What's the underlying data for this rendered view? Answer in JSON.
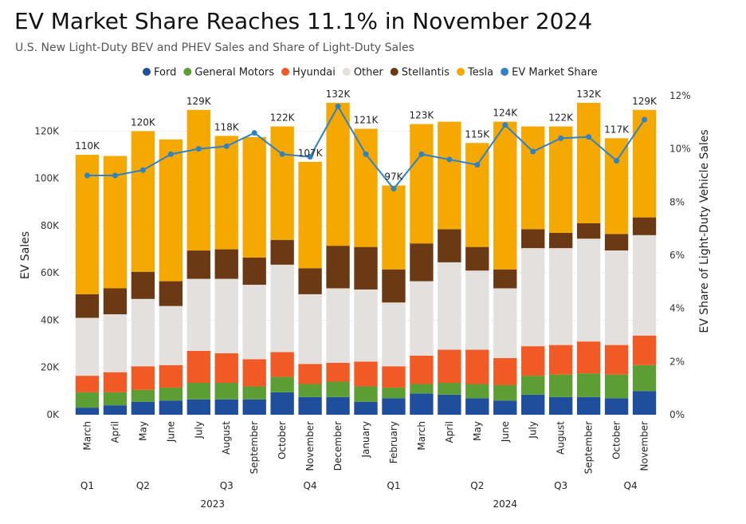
{
  "title": "EV Market Share Reaches 11.1% in November 2024",
  "subtitle": "U.S. New Light-Duty BEV and PHEV Sales and Share of Light-Duty Sales",
  "colors": {
    "Ford": "#1f4e9c",
    "General Motors": "#5c9e34",
    "Hyundai": "#f15a24",
    "Other": "#e3e0dd",
    "Stellantis": "#6b3a14",
    "Tesla": "#f5a800",
    "EV Market Share": "#2e82c6"
  },
  "chart_data": {
    "type": "bar",
    "stacked": true,
    "legend_position": "top",
    "ylabel": "EV Sales",
    "y2label": "EV Share of Light-Duty Vehicle Sales",
    "ylim": [
      0,
      135000
    ],
    "y2lim": [
      0,
      12
    ],
    "yticks": [
      "0K",
      "20K",
      "40K",
      "60K",
      "80K",
      "100K",
      "120K"
    ],
    "y2ticks": [
      "0%",
      "2%",
      "4%",
      "6%",
      "8%",
      "10%",
      "12%"
    ],
    "categories": [
      "March",
      "April",
      "May",
      "June",
      "July",
      "August",
      "September",
      "October",
      "November",
      "December",
      "January",
      "February",
      "March",
      "April",
      "May",
      "June",
      "July",
      "August",
      "September",
      "October",
      "November"
    ],
    "quarters": [
      {
        "label": "Q1",
        "at": 0
      },
      {
        "label": "Q2",
        "at": 2
      },
      {
        "label": "Q3",
        "at": 5
      },
      {
        "label": "Q4",
        "at": 8
      },
      {
        "label": "Q1",
        "at": 11
      },
      {
        "label": "Q2",
        "at": 14
      },
      {
        "label": "Q3",
        "at": 17
      },
      {
        "label": "Q4",
        "at": 19.5
      }
    ],
    "years": [
      {
        "label": "2023",
        "at": 4.5
      },
      {
        "label": "2024",
        "at": 15
      }
    ],
    "totals": [
      "110K",
      "",
      "120K",
      "",
      "129K",
      "118K",
      "",
      "122K",
      "107K",
      "132K",
      "121K",
      "97K",
      "123K",
      "",
      "115K",
      "124K",
      "",
      "122K",
      "132K",
      "117K",
      "129K"
    ],
    "series": [
      {
        "name": "Ford",
        "values": [
          3000,
          4000,
          5500,
          6000,
          6500,
          6500,
          6500,
          9500,
          7500,
          7500,
          5500,
          7000,
          9000,
          8500,
          7000,
          6000,
          8500,
          7500,
          7500,
          7000,
          10000
        ]
      },
      {
        "name": "General Motors",
        "values": [
          6500,
          5500,
          5000,
          5500,
          7000,
          7000,
          5500,
          6500,
          5500,
          6500,
          6500,
          4500,
          4000,
          5000,
          6000,
          6500,
          8000,
          9500,
          10000,
          10000,
          11000
        ]
      },
      {
        "name": "Hyundai",
        "values": [
          7000,
          8500,
          10000,
          9500,
          13500,
          12500,
          11500,
          10500,
          8500,
          8000,
          10500,
          9000,
          12000,
          14000,
          14500,
          11500,
          12500,
          12500,
          13500,
          12500,
          12500
        ]
      },
      {
        "name": "Other",
        "values": [
          24500,
          24500,
          28500,
          25000,
          30500,
          31500,
          31500,
          37000,
          29500,
          31500,
          30500,
          27000,
          31500,
          37000,
          33500,
          29500,
          41500,
          41000,
          43500,
          40000,
          42500
        ]
      },
      {
        "name": "Stellantis",
        "values": [
          10000,
          11000,
          11500,
          10500,
          12000,
          12500,
          11500,
          10500,
          11000,
          18000,
          18000,
          14000,
          16000,
          14000,
          10000,
          8000,
          8000,
          6500,
          6500,
          7000,
          7500
        ]
      },
      {
        "name": "Tesla",
        "values": [
          59000,
          56000,
          59500,
          60000,
          59500,
          48000,
          51000,
          48000,
          45000,
          60500,
          50000,
          35500,
          50500,
          45500,
          44000,
          62500,
          43500,
          45000,
          51000,
          40500,
          45500
        ]
      }
    ],
    "line": {
      "name": "EV Market Share",
      "values": [
        9.0,
        9.0,
        9.2,
        9.8,
        10.0,
        10.1,
        10.6,
        9.8,
        9.7,
        11.6,
        9.8,
        8.5,
        9.8,
        9.6,
        9.4,
        10.9,
        9.9,
        10.4,
        10.45,
        9.55,
        11.1
      ]
    }
  }
}
